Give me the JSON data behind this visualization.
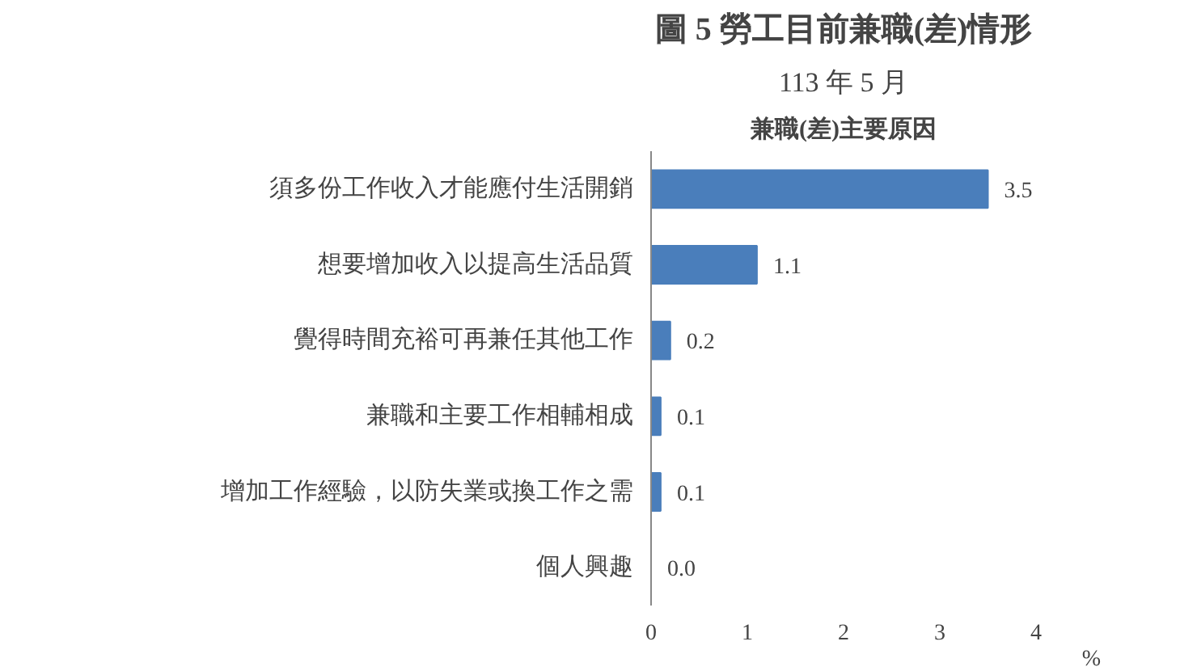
{
  "chart_data": {
    "type": "bar",
    "orientation": "horizontal",
    "title": "圖 5 勞工目前兼職(差)情形",
    "subtitle": "113 年 5 月",
    "annotations": [
      "兼職(差)主要原因"
    ],
    "categories": [
      "須多份工作收入才能應付生活開銷",
      "想要增加收入以提高生活品質",
      "覺得時間充裕可再兼任其他工作",
      "兼職和主要工作相輔相成",
      "增加工作經驗，以防失業或換工作之需",
      "個人興趣"
    ],
    "values": [
      3.5,
      1.1,
      0.2,
      0.1,
      0.1,
      0.0
    ],
    "value_labels": [
      "3.5",
      "1.1",
      "0.2",
      "0.1",
      "0.1",
      "0.0"
    ],
    "color": "#4a7ebb",
    "xlim": [
      0,
      4
    ],
    "xticks": [
      0,
      1,
      2,
      3,
      4
    ],
    "xlabel": "%",
    "grid": false
  }
}
